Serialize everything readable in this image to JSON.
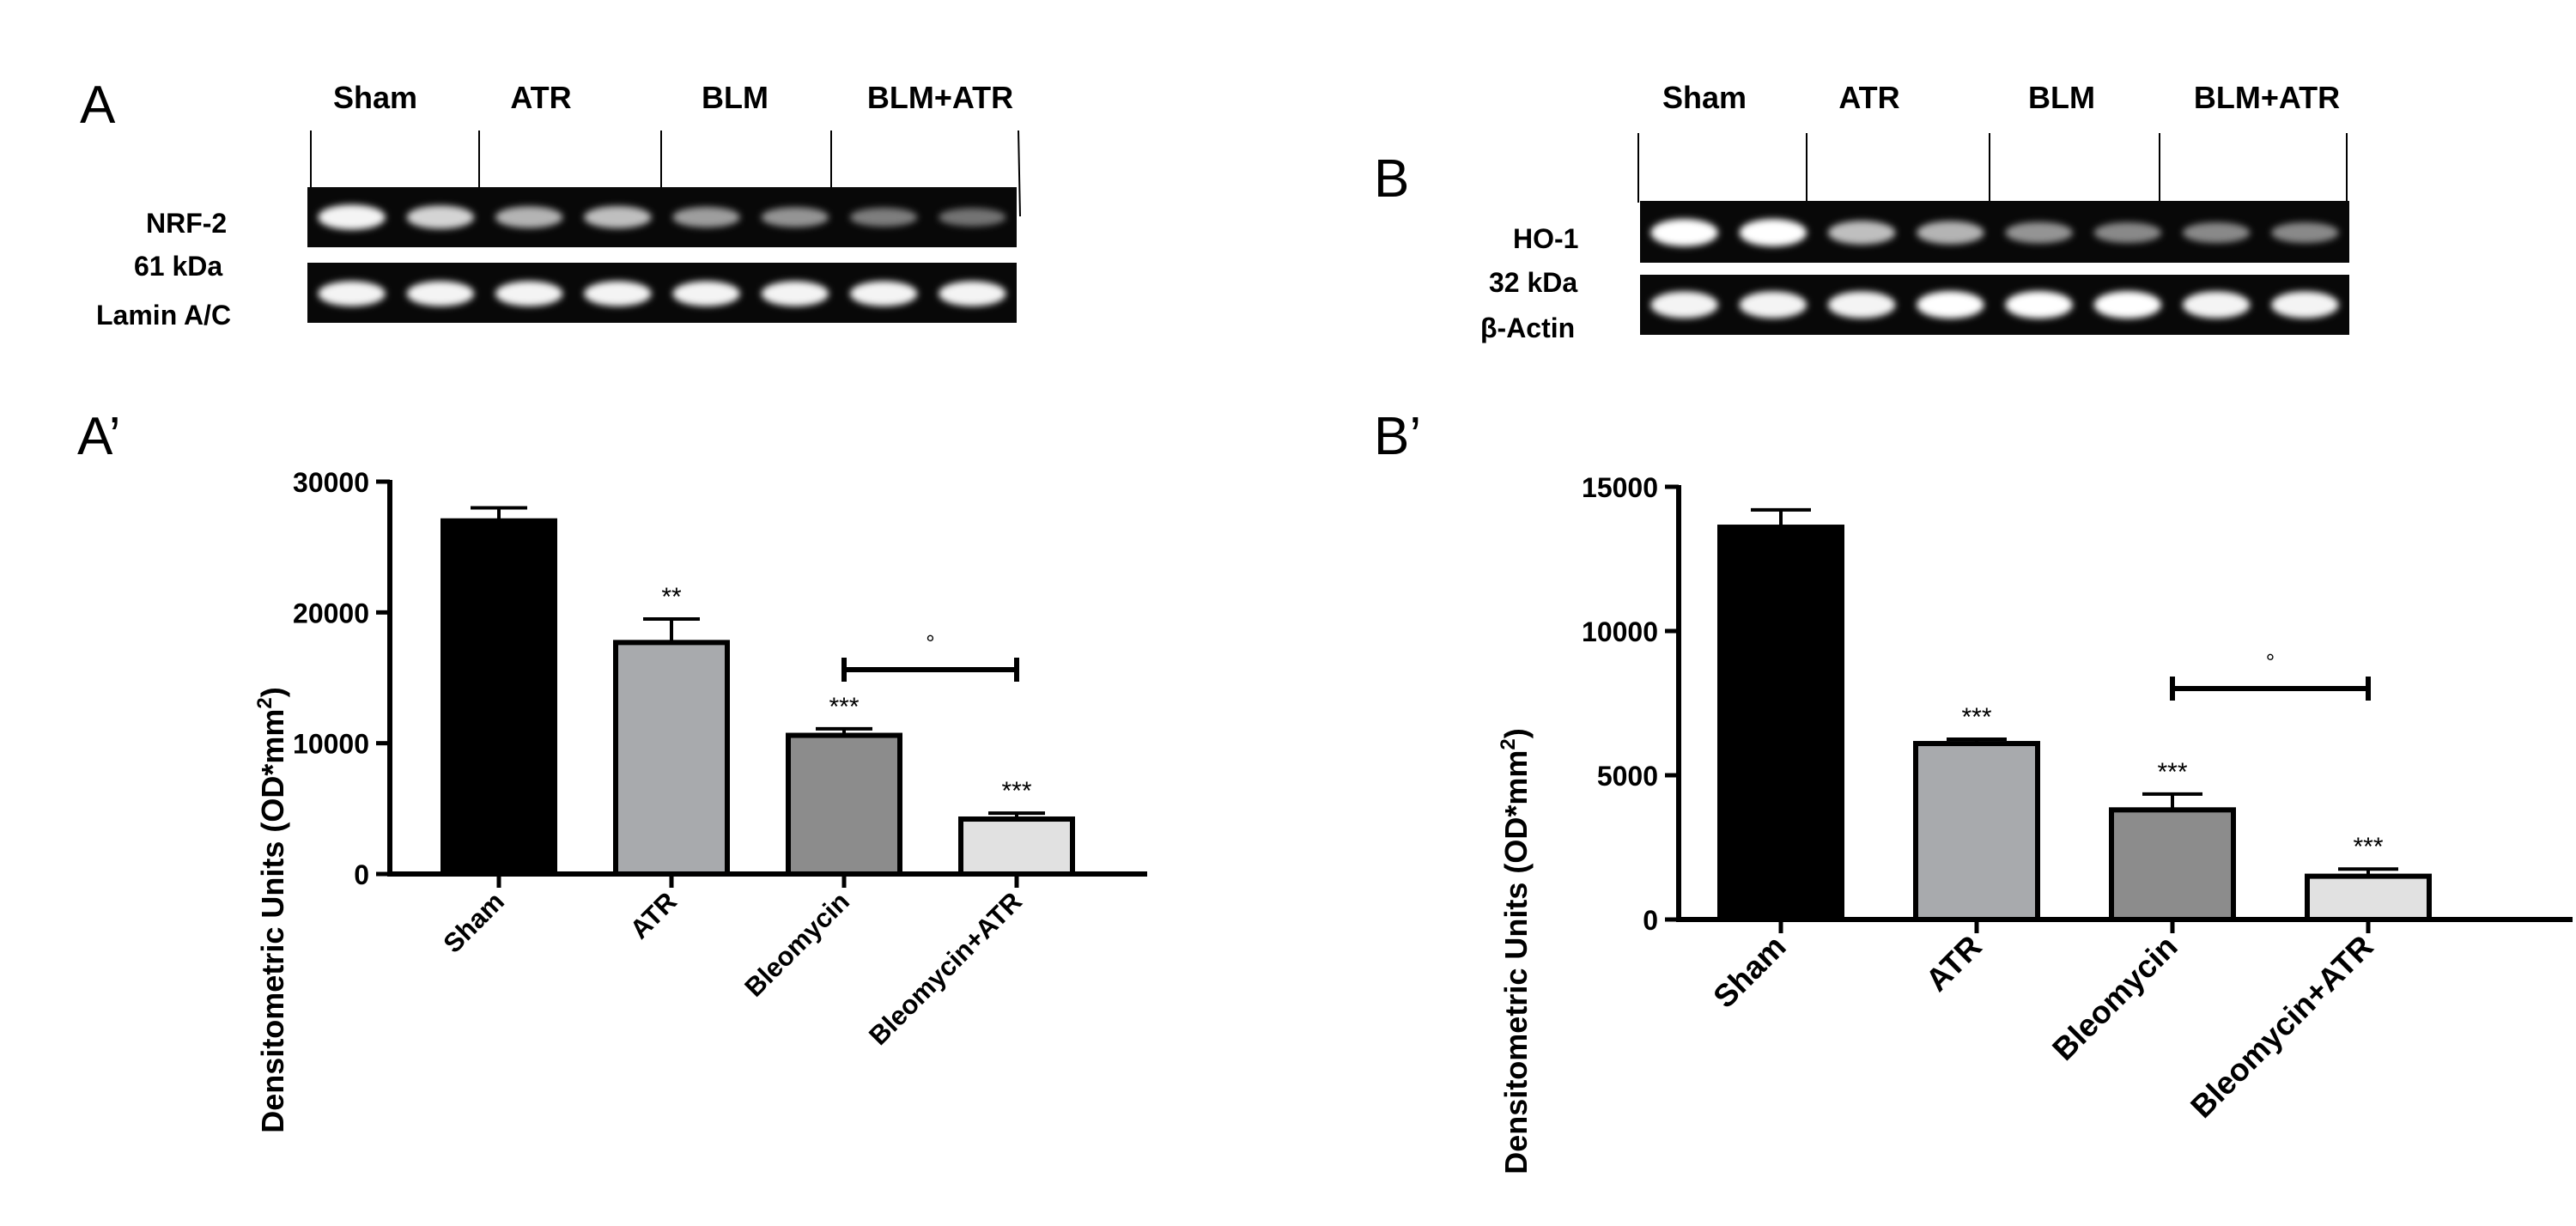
{
  "panels": {
    "a": {
      "letter": "A",
      "lanes": [
        "Sham",
        "ATR",
        "BLM",
        "BLM+ATR"
      ],
      "target_label": "NRF-2",
      "target_kda": "61 kDa",
      "control_label": "Lamin A/C",
      "target_bands": [
        0.95,
        0.8,
        0.65,
        0.7,
        0.55,
        0.5,
        0.4,
        0.35
      ],
      "control_bands": [
        0.95,
        0.95,
        0.95,
        0.95,
        0.95,
        0.95,
        0.95,
        0.95
      ]
    },
    "b": {
      "letter": "B",
      "lanes": [
        "Sham",
        "ATR",
        "BLM",
        "BLM+ATR"
      ],
      "target_label": "HO-1",
      "target_kda": "32 kDa",
      "control_label": "β-Actin",
      "target_bands": [
        1.0,
        1.0,
        0.7,
        0.65,
        0.5,
        0.45,
        0.45,
        0.45
      ],
      "control_bands": [
        0.95,
        0.95,
        0.95,
        1.0,
        1.0,
        1.0,
        0.95,
        0.95
      ]
    },
    "a_prime": {
      "letter": "A’"
    },
    "b_prime": {
      "letter": "B’"
    }
  },
  "chart_data": [
    {
      "type": "bar",
      "categories": [
        "Sham",
        "ATR",
        "Bleomycin",
        "Bleomycin+ATR"
      ],
      "values": [
        27000,
        17700,
        10600,
        4200
      ],
      "errors": [
        1000,
        1800,
        500,
        450
      ],
      "significance": [
        "",
        "**",
        "***",
        "***"
      ],
      "bracket": {
        "from": 2,
        "to": 3,
        "label": "°"
      },
      "ylabel": "Densitometric Units (OD*mm",
      "ylabel_sup": "2",
      "ylabel_close": ")",
      "yticks": [
        0,
        10000,
        20000,
        30000
      ],
      "ytick_labels": [
        "0",
        "10000",
        "20000",
        "30000"
      ],
      "ylim": [
        0,
        30000
      ],
      "colors": [
        "#000000",
        "#a8aaad",
        "#8c8c8c",
        "#e1e1e1"
      ]
    },
    {
      "type": "bar",
      "categories": [
        "Sham",
        "ATR",
        "Bleomycin",
        "Bleomycin+ATR"
      ],
      "values": [
        13600,
        6100,
        3800,
        1500
      ],
      "errors": [
        600,
        150,
        550,
        250
      ],
      "significance": [
        "",
        "***",
        "***",
        "***"
      ],
      "bracket": {
        "from": 2,
        "to": 3,
        "label": "°"
      },
      "ylabel": "Densitometric Units (OD*mm",
      "ylabel_sup": "2",
      "ylabel_close": ")",
      "yticks": [
        0,
        5000,
        10000,
        15000
      ],
      "ytick_labels": [
        "0",
        "5000",
        "10000",
        "15000"
      ],
      "ylim": [
        0,
        15000
      ],
      "colors": [
        "#000000",
        "#a8aaad",
        "#8c8c8c",
        "#e1e1e1"
      ]
    }
  ]
}
